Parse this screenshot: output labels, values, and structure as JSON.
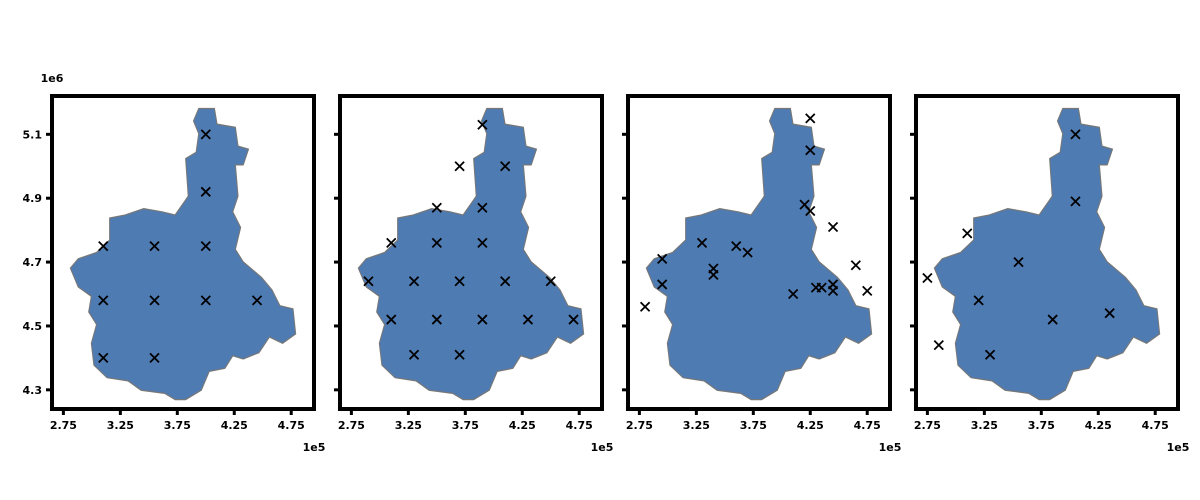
{
  "figure": {
    "y_unit": "1e6",
    "region_color": "#4f7bb3",
    "region_edge_color": "#777777",
    "marker_color": "#000000"
  },
  "chart_data": [
    {
      "type": "scatter",
      "title": "",
      "x_unit": "1e5",
      "points": [
        {
          "x": 4.0,
          "y": 5.1
        },
        {
          "x": 4.0,
          "y": 4.92
        },
        {
          "x": 3.1,
          "y": 4.75
        },
        {
          "x": 3.55,
          "y": 4.75
        },
        {
          "x": 4.0,
          "y": 4.75
        },
        {
          "x": 3.1,
          "y": 4.58
        },
        {
          "x": 3.55,
          "y": 4.58
        },
        {
          "x": 4.0,
          "y": 4.58
        },
        {
          "x": 4.45,
          "y": 4.58
        },
        {
          "x": 3.1,
          "y": 4.4
        },
        {
          "x": 3.55,
          "y": 4.4
        }
      ]
    },
    {
      "type": "scatter",
      "title": "",
      "x_unit": "1e5",
      "points": [
        {
          "x": 3.9,
          "y": 5.13
        },
        {
          "x": 3.7,
          "y": 5.0
        },
        {
          "x": 4.1,
          "y": 5.0
        },
        {
          "x": 3.5,
          "y": 4.87
        },
        {
          "x": 3.9,
          "y": 4.87
        },
        {
          "x": 3.1,
          "y": 4.76
        },
        {
          "x": 3.5,
          "y": 4.76
        },
        {
          "x": 3.9,
          "y": 4.76
        },
        {
          "x": 2.9,
          "y": 4.64
        },
        {
          "x": 3.3,
          "y": 4.64
        },
        {
          "x": 3.7,
          "y": 4.64
        },
        {
          "x": 4.1,
          "y": 4.64
        },
        {
          "x": 4.5,
          "y": 4.64
        },
        {
          "x": 3.1,
          "y": 4.52
        },
        {
          "x": 3.5,
          "y": 4.52
        },
        {
          "x": 3.9,
          "y": 4.52
        },
        {
          "x": 4.3,
          "y": 4.52
        },
        {
          "x": 4.7,
          "y": 4.52
        },
        {
          "x": 3.3,
          "y": 4.41
        },
        {
          "x": 3.7,
          "y": 4.41
        }
      ]
    },
    {
      "type": "scatter",
      "title": "",
      "x_unit": "1e5",
      "points": [
        {
          "x": 4.25,
          "y": 5.15
        },
        {
          "x": 4.25,
          "y": 5.05
        },
        {
          "x": 4.2,
          "y": 4.88
        },
        {
          "x": 4.25,
          "y": 4.86
        },
        {
          "x": 4.45,
          "y": 4.81
        },
        {
          "x": 3.3,
          "y": 4.76
        },
        {
          "x": 3.6,
          "y": 4.75
        },
        {
          "x": 3.7,
          "y": 4.73
        },
        {
          "x": 2.95,
          "y": 4.71
        },
        {
          "x": 3.4,
          "y": 4.68
        },
        {
          "x": 3.4,
          "y": 4.66
        },
        {
          "x": 4.65,
          "y": 4.69
        },
        {
          "x": 2.95,
          "y": 4.63
        },
        {
          "x": 4.3,
          "y": 4.62
        },
        {
          "x": 4.35,
          "y": 4.62
        },
        {
          "x": 4.45,
          "y": 4.63
        },
        {
          "x": 4.45,
          "y": 4.61
        },
        {
          "x": 4.75,
          "y": 4.61
        },
        {
          "x": 4.1,
          "y": 4.6
        },
        {
          "x": 2.8,
          "y": 4.56
        }
      ]
    },
    {
      "type": "scatter",
      "title": "",
      "x_unit": "1e5",
      "points": [
        {
          "x": 4.05,
          "y": 5.1
        },
        {
          "x": 4.05,
          "y": 4.89
        },
        {
          "x": 3.1,
          "y": 4.79
        },
        {
          "x": 3.55,
          "y": 4.7
        },
        {
          "x": 2.75,
          "y": 4.65
        },
        {
          "x": 3.2,
          "y": 4.58
        },
        {
          "x": 4.35,
          "y": 4.54
        },
        {
          "x": 3.85,
          "y": 4.52
        },
        {
          "x": 2.85,
          "y": 4.44
        },
        {
          "x": 3.3,
          "y": 4.41
        }
      ]
    }
  ]
}
